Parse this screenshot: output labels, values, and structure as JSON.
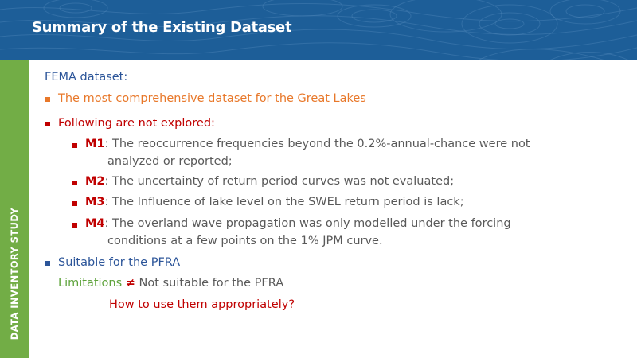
{
  "slide": {
    "title": "Summary of the Existing Dataset",
    "sidebar_label": "DATA INVENTORY STUDY"
  },
  "body": {
    "intro": "FEMA dataset:",
    "point1": "The most comprehensive dataset for the Great Lakes",
    "point2": "Following are not explored:",
    "items": [
      {
        "id": "M1",
        "sep": ":",
        "line1": " The reoccurrence frequencies beyond the 0.2%-annual-chance were not",
        "line2": "analyzed or reported;"
      },
      {
        "id": "M2",
        "sep": ":",
        "line1": " The uncertainty of return period curves was not evaluated;"
      },
      {
        "id": "M3",
        "sep": ":",
        "line1": " The Influence of lake level on the SWEL return period is lack;"
      },
      {
        "id": "M4",
        "sep": ":",
        "line1": " The overland wave propagation was only modelled under the forcing",
        "line2": "conditions at a few points on the 1% JPM curve."
      }
    ],
    "point3": "Suitable for the PFRA",
    "limitations_word": "Limitations",
    "not_equal_symbol": "≠",
    "limitations_rest": " Not suitable for the PFRA",
    "question": "How to use them appropriately?"
  },
  "colors": {
    "header_blue": "#1d5e98",
    "sidebar_green": "#72ad46",
    "text_blue": "#2c5599",
    "text_orange": "#e8782a",
    "text_red": "#c00000",
    "text_green": "#5ea33b",
    "text_gray": "#595959"
  }
}
